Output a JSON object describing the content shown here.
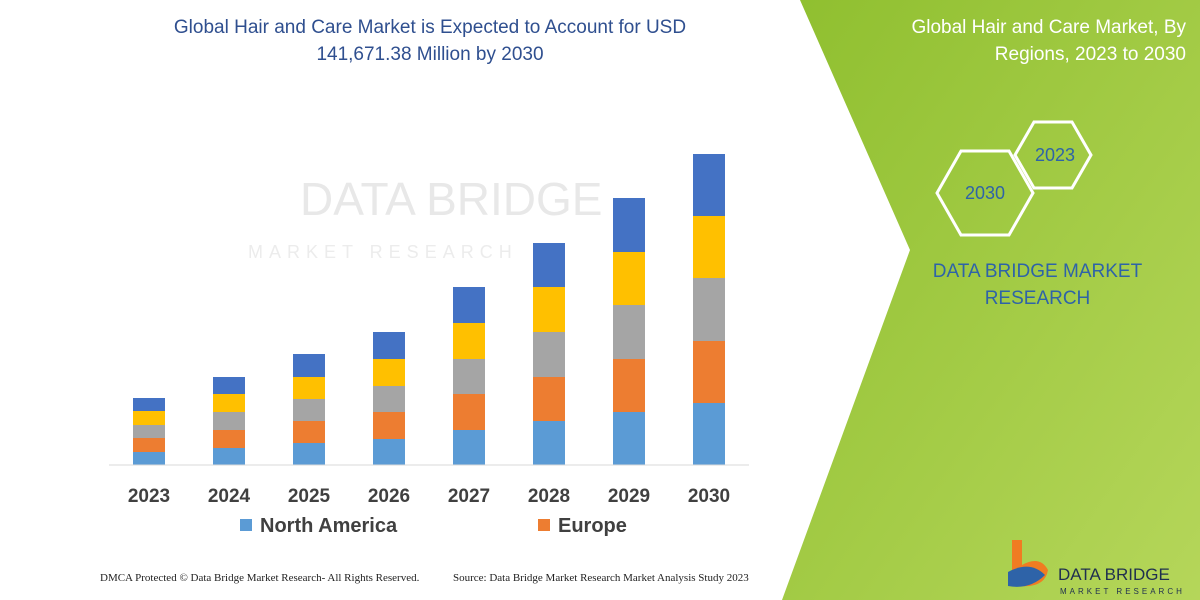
{
  "chart_data": {
    "type": "stacked-bar",
    "title": "Global Hair and Care Market is Expected to Account for USD 141,671.38 Million by 2030",
    "categories": [
      "2023",
      "2024",
      "2025",
      "2026",
      "2027",
      "2028",
      "2029",
      "2030"
    ],
    "series": [
      {
        "name": "North America",
        "color": "#5b9bd5",
        "values": [
          13,
          17,
          22,
          26,
          35,
          44,
          53,
          62
        ]
      },
      {
        "name": "Europe",
        "color": "#ed7d31",
        "values": [
          14,
          18,
          22,
          27,
          36,
          44,
          53,
          62
        ]
      },
      {
        "name": null,
        "color": "#a5a5a5",
        "values": [
          13,
          18,
          22,
          26,
          35,
          45,
          54,
          63
        ]
      },
      {
        "name": null,
        "color": "#ffc000",
        "values": [
          14,
          18,
          22,
          27,
          36,
          45,
          53,
          62
        ]
      },
      {
        "name": null,
        "color": "#4472c4",
        "values": [
          13,
          17,
          23,
          27,
          36,
          44,
          54,
          62
        ]
      }
    ],
    "ylim": [
      0,
      320
    ]
  },
  "side_panel": {
    "title": "Global Hair and Care Market, By Regions, 2023 to 2030",
    "hexagons": [
      "2023",
      "2030"
    ],
    "brand": "DATA BRIDGE MARKET RESEARCH"
  },
  "logo": {
    "name": "DATA BRIDGE",
    "tagline": "MARKET RESEARCH"
  },
  "footer": {
    "copyright": "DMCA Protected © Data Bridge Market Research- All Rights Reserved.",
    "source": "Source: Data Bridge Market Research  Market Analysis Study 2023"
  }
}
